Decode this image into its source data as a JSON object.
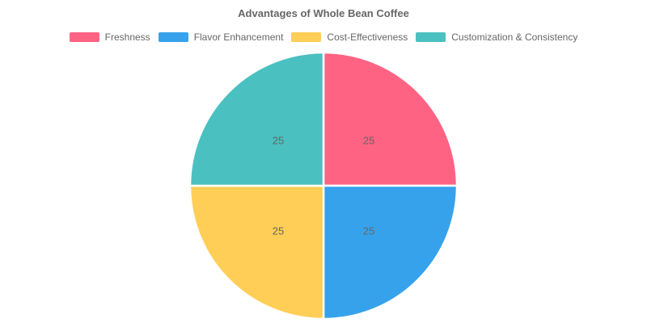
{
  "chart_data": {
    "type": "pie",
    "title": "Advantages of Whole Bean Coffee",
    "labels": [
      "Freshness",
      "Flavor Enhancement",
      "Cost-Effectiveness",
      "Customization & Consistency"
    ],
    "values": [
      25,
      25,
      25,
      25
    ],
    "data_labels": [
      "25",
      "25",
      "25",
      "25"
    ],
    "colors": [
      "#FF6384",
      "#36A2EB",
      "#FFCE56",
      "#4BC0C0"
    ],
    "slice_border_color": "#ffffff",
    "title_color": "#666666",
    "legend_text_color": "#666666",
    "value_label_color": "#666666",
    "legend_position": "top",
    "start_angle_deg": -90,
    "direction": "clockwise"
  }
}
